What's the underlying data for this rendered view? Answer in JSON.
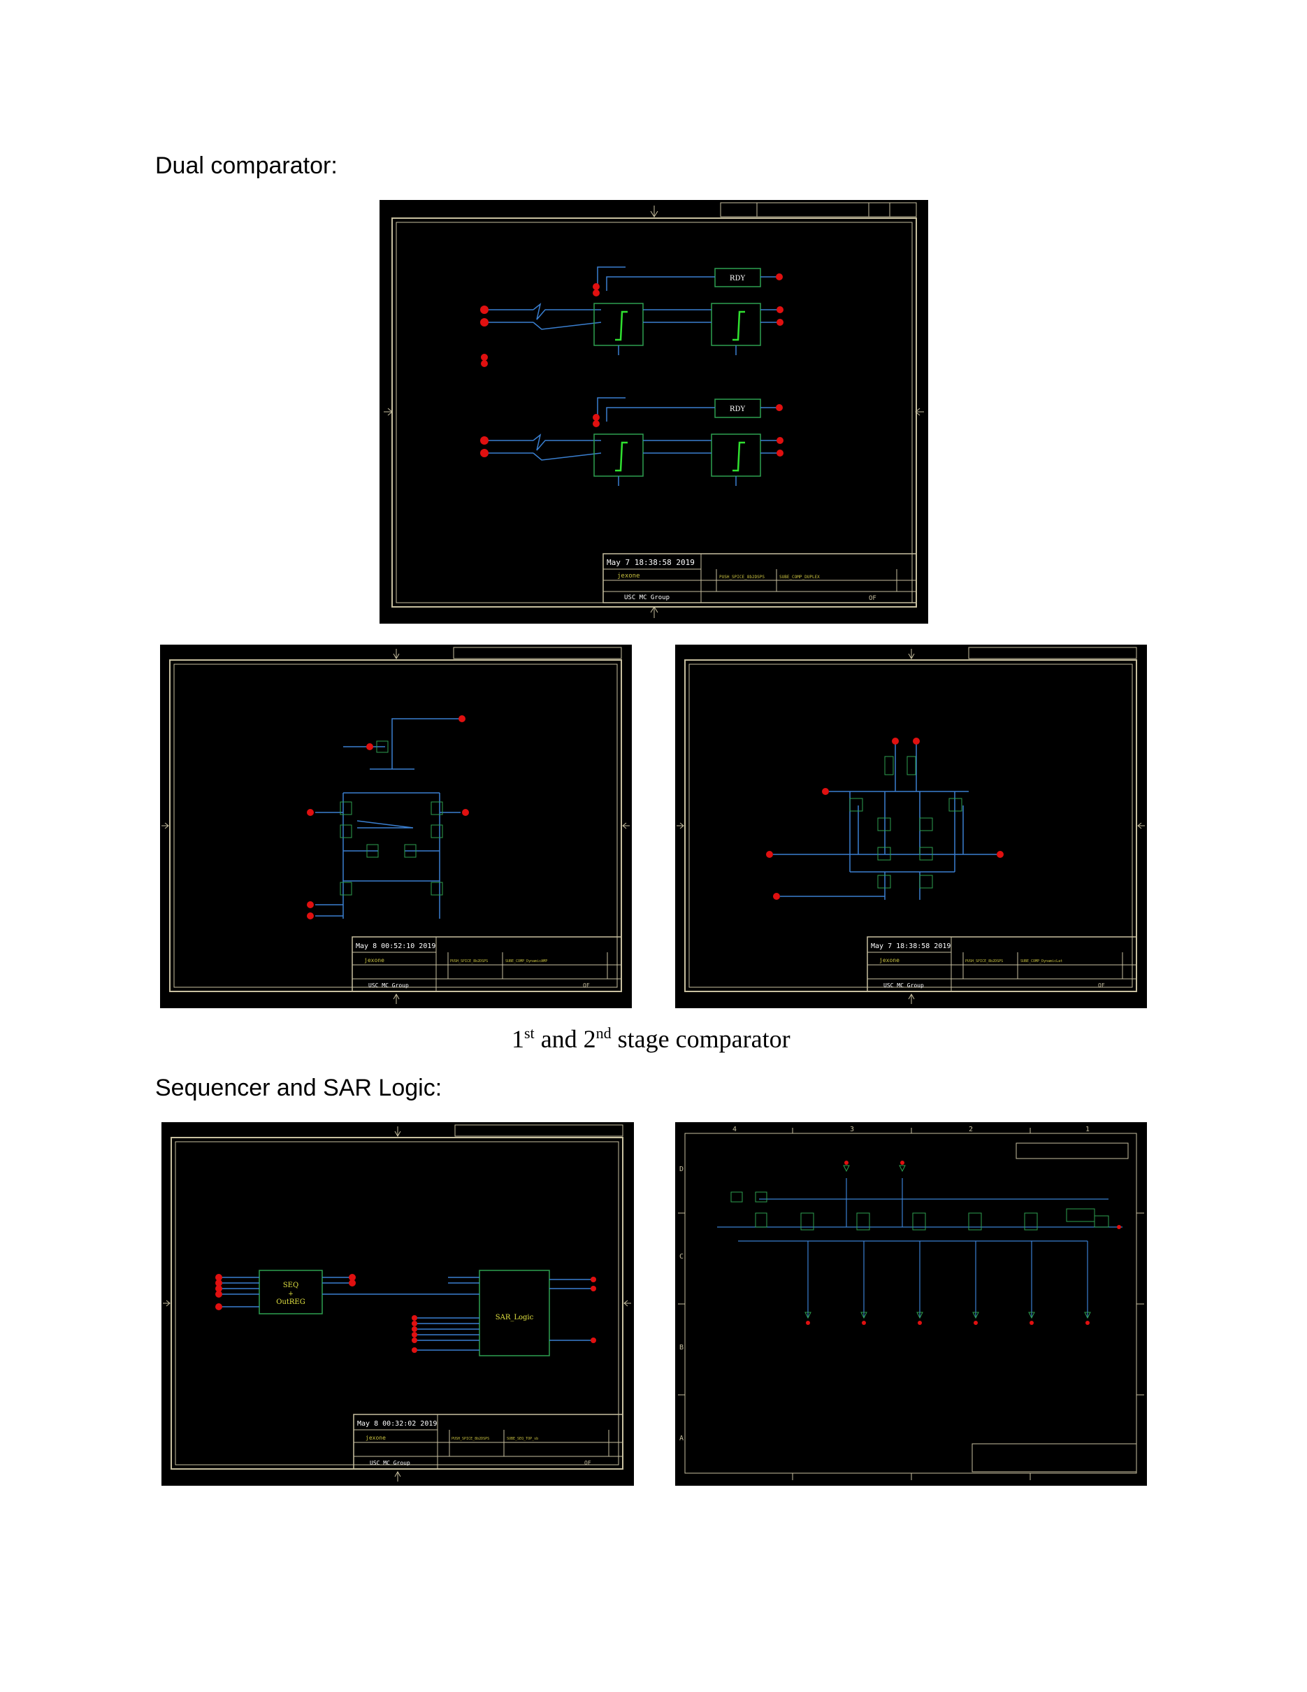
{
  "headings": {
    "dual": "Dual comparator:",
    "seq": "Sequencer and SAR Logic:"
  },
  "caption": {
    "p1": "1",
    "s1": "st",
    "p2": " and 2",
    "s2": "nd",
    "p3": " stage comparator"
  },
  "schematics": {
    "dual": {
      "timestamp": "May  7 18:38:58 2019",
      "drawn": "jexone",
      "group": "USC MC Group",
      "page_no": "PUSH_SPICE_8b2DSPS",
      "dwg_no": "SUBE_COMP_DUPLEX",
      "of": "OF",
      "rdy": "RDY"
    },
    "stage1": {
      "timestamp": "May  8 00:52:10 2019",
      "drawn": "jexone",
      "group": "USC MC Group",
      "page_no": "PUSH_SPICE_8b2DSPS",
      "dwg_no": "SUBE_COMP_DynamicAMP",
      "of": "OF"
    },
    "stage2": {
      "timestamp": "May  7 18:38:58 2019",
      "drawn": "jexone",
      "group": "USC MC Group",
      "page_no": "PUSH_SPICE_8b2DSPS",
      "dwg_no": "SUBE_COMP_DynamicLat",
      "of": "OF"
    },
    "seqsar": {
      "timestamp": "May  8 00:32:02 2019",
      "drawn": "jexone",
      "group": "USC MC Group",
      "page_no": "PUSH_SPICE_8b2DSPS",
      "dwg_no": "SUBE_SEQ_TOP_sb",
      "of": "OF",
      "seq1": "SEQ",
      "seq2": "+",
      "seq3": "OutREG",
      "sar": "SAR_Logic"
    },
    "seqdetail": {
      "col4": "4",
      "col3": "3",
      "col2": "2",
      "col1": "1",
      "rowD": "D",
      "rowC": "C",
      "rowB": "B",
      "rowA": "A"
    }
  }
}
